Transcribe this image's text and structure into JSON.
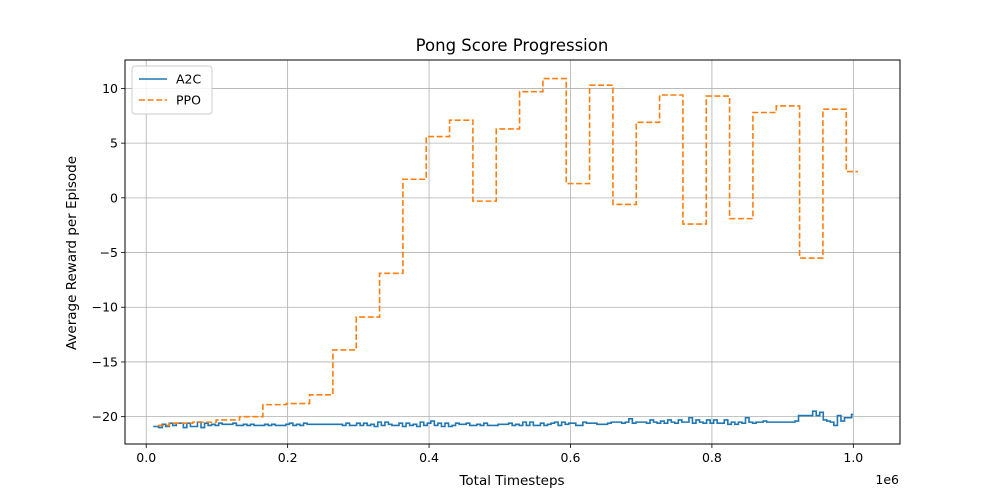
{
  "chart_data": {
    "type": "line",
    "title": "Pong Score Progression",
    "xlabel": "Total Timesteps",
    "ylabel": "Average Reward per Episode",
    "x_offset_label": "1e6",
    "xlim": [
      -30000,
      1066000
    ],
    "ylim": [
      -22.5,
      12.6
    ],
    "xticks": [
      0,
      200000,
      400000,
      600000,
      800000,
      1000000
    ],
    "xtick_labels": [
      "0.0",
      "0.2",
      "0.4",
      "0.6",
      "0.8",
      "1.0"
    ],
    "yticks": [
      -20,
      -15,
      -10,
      -5,
      0,
      5,
      10
    ],
    "ytick_labels": [
      "−20",
      "−15",
      "−10",
      "−5",
      "0",
      "5",
      "10"
    ],
    "grid": true,
    "legend_position": "top-left",
    "series": [
      {
        "name": "A2C",
        "color": "#1f77b4",
        "dash": "solid",
        "drawstyle": "steps-mid",
        "x": [
          10000,
          15000,
          20000,
          25000,
          30000,
          35000,
          40000,
          45000,
          50000,
          55000,
          60000,
          65000,
          70000,
          75000,
          80000,
          85000,
          90000,
          95000,
          100000,
          105000,
          110000,
          115000,
          120000,
          125000,
          130000,
          135000,
          140000,
          145000,
          150000,
          155000,
          160000,
          165000,
          170000,
          175000,
          180000,
          185000,
          190000,
          195000,
          200000,
          205000,
          210000,
          215000,
          220000,
          225000,
          230000,
          235000,
          240000,
          245000,
          250000,
          255000,
          260000,
          265000,
          270000,
          275000,
          280000,
          285000,
          290000,
          295000,
          300000,
          305000,
          310000,
          315000,
          320000,
          325000,
          330000,
          335000,
          340000,
          345000,
          350000,
          355000,
          360000,
          365000,
          370000,
          375000,
          380000,
          385000,
          390000,
          395000,
          400000,
          405000,
          410000,
          415000,
          420000,
          425000,
          430000,
          435000,
          440000,
          445000,
          450000,
          455000,
          460000,
          465000,
          470000,
          475000,
          480000,
          485000,
          490000,
          495000,
          500000,
          505000,
          510000,
          515000,
          520000,
          525000,
          530000,
          535000,
          540000,
          545000,
          550000,
          555000,
          560000,
          565000,
          570000,
          575000,
          580000,
          585000,
          590000,
          595000,
          600000,
          605000,
          610000,
          615000,
          620000,
          625000,
          630000,
          635000,
          640000,
          645000,
          650000,
          655000,
          660000,
          665000,
          670000,
          675000,
          680000,
          685000,
          690000,
          695000,
          700000,
          705000,
          710000,
          715000,
          720000,
          725000,
          730000,
          735000,
          740000,
          745000,
          750000,
          755000,
          760000,
          765000,
          770000,
          775000,
          780000,
          785000,
          790000,
          795000,
          800000,
          805000,
          810000,
          815000,
          820000,
          825000,
          830000,
          835000,
          840000,
          845000,
          850000,
          855000,
          860000,
          865000,
          870000,
          875000,
          880000,
          885000,
          890000,
          895000,
          900000,
          905000,
          910000,
          915000,
          920000,
          925000,
          930000,
          935000,
          940000,
          945000,
          950000,
          955000,
          960000,
          965000,
          970000,
          975000,
          980000,
          985000,
          990000,
          995000,
          1000000
        ],
        "y": [
          -20.9,
          -20.9,
          -21.0,
          -20.7,
          -20.9,
          -20.6,
          -20.8,
          -20.6,
          -20.6,
          -21.0,
          -20.6,
          -20.9,
          -20.9,
          -20.5,
          -21.0,
          -20.6,
          -20.8,
          -20.7,
          -20.8,
          -20.6,
          -20.7,
          -20.7,
          -20.7,
          -20.6,
          -20.8,
          -20.8,
          -20.7,
          -20.8,
          -20.7,
          -20.8,
          -20.8,
          -20.8,
          -20.7,
          -20.8,
          -20.7,
          -20.8,
          -20.8,
          -20.8,
          -20.7,
          -20.6,
          -20.8,
          -20.7,
          -20.8,
          -20.6,
          -20.7,
          -20.7,
          -20.7,
          -20.7,
          -20.7,
          -20.7,
          -20.7,
          -20.7,
          -20.7,
          -20.7,
          -20.8,
          -20.6,
          -20.8,
          -20.8,
          -20.6,
          -20.8,
          -20.6,
          -20.8,
          -20.7,
          -20.9,
          -20.5,
          -20.8,
          -20.5,
          -20.7,
          -20.8,
          -20.8,
          -20.6,
          -20.9,
          -20.6,
          -20.8,
          -20.7,
          -20.9,
          -20.5,
          -20.8,
          -20.6,
          -20.4,
          -20.8,
          -20.6,
          -20.9,
          -20.6,
          -20.9,
          -20.8,
          -20.6,
          -20.7,
          -20.7,
          -20.6,
          -20.8,
          -20.8,
          -20.7,
          -20.8,
          -20.6,
          -20.8,
          -20.8,
          -20.8,
          -20.7,
          -20.7,
          -20.7,
          -20.6,
          -20.8,
          -20.7,
          -20.8,
          -20.5,
          -20.8,
          -20.5,
          -20.8,
          -20.8,
          -20.6,
          -20.8,
          -20.7,
          -20.6,
          -20.5,
          -20.8,
          -20.5,
          -20.7,
          -20.6,
          -20.6,
          -20.8,
          -20.8,
          -20.5,
          -20.6,
          -20.6,
          -20.6,
          -20.7,
          -20.7,
          -20.7,
          -20.6,
          -20.5,
          -20.5,
          -20.5,
          -20.6,
          -20.5,
          -20.2,
          -20.6,
          -20.5,
          -20.5,
          -20.5,
          -20.6,
          -20.3,
          -20.5,
          -20.6,
          -20.4,
          -20.6,
          -20.3,
          -20.5,
          -20.6,
          -20.3,
          -20.5,
          -20.5,
          -20.1,
          -20.6,
          -20.3,
          -20.5,
          -20.6,
          -20.3,
          -20.6,
          -20.3,
          -20.6,
          -20.6,
          -20.3,
          -20.7,
          -20.5,
          -20.7,
          -20.5,
          -20.6,
          -20.1,
          -20.5,
          -20.6,
          -20.5,
          -20.5,
          -20.4,
          -20.5,
          -20.5,
          -20.5,
          -20.5,
          -20.5,
          -20.5,
          -20.5,
          -20.5,
          -20.4,
          -19.9,
          -19.9,
          -19.9,
          -19.9,
          -19.5,
          -19.9,
          -19.6,
          -20.3,
          -20.4,
          -20.5,
          -20.8,
          -19.9,
          -20.4,
          -20.1,
          -20.1,
          -19.8
        ]
      },
      {
        "name": "PPO",
        "color": "#ff7f0e",
        "dash": "dashed",
        "drawstyle": "steps-mid",
        "x": [
          16500,
          49500,
          82500,
          115500,
          148500,
          181500,
          214500,
          247500,
          280500,
          313500,
          346500,
          379500,
          412500,
          445500,
          478500,
          511500,
          544500,
          577500,
          610500,
          643500,
          676500,
          709500,
          742500,
          775500,
          808500,
          841500,
          874500,
          907500,
          940500,
          973500,
          1006500
        ],
        "y": [
          -20.8,
          -20.6,
          -20.5,
          -20.3,
          -20.0,
          -18.9,
          -18.8,
          -18.0,
          -13.9,
          -10.9,
          -6.9,
          1.7,
          5.6,
          7.1,
          -0.3,
          6.3,
          9.7,
          10.9,
          1.3,
          10.3,
          -0.6,
          6.9,
          9.4,
          -2.4,
          9.3,
          -1.9,
          7.8,
          8.4,
          -5.5,
          8.1,
          2.4
        ]
      }
    ]
  }
}
